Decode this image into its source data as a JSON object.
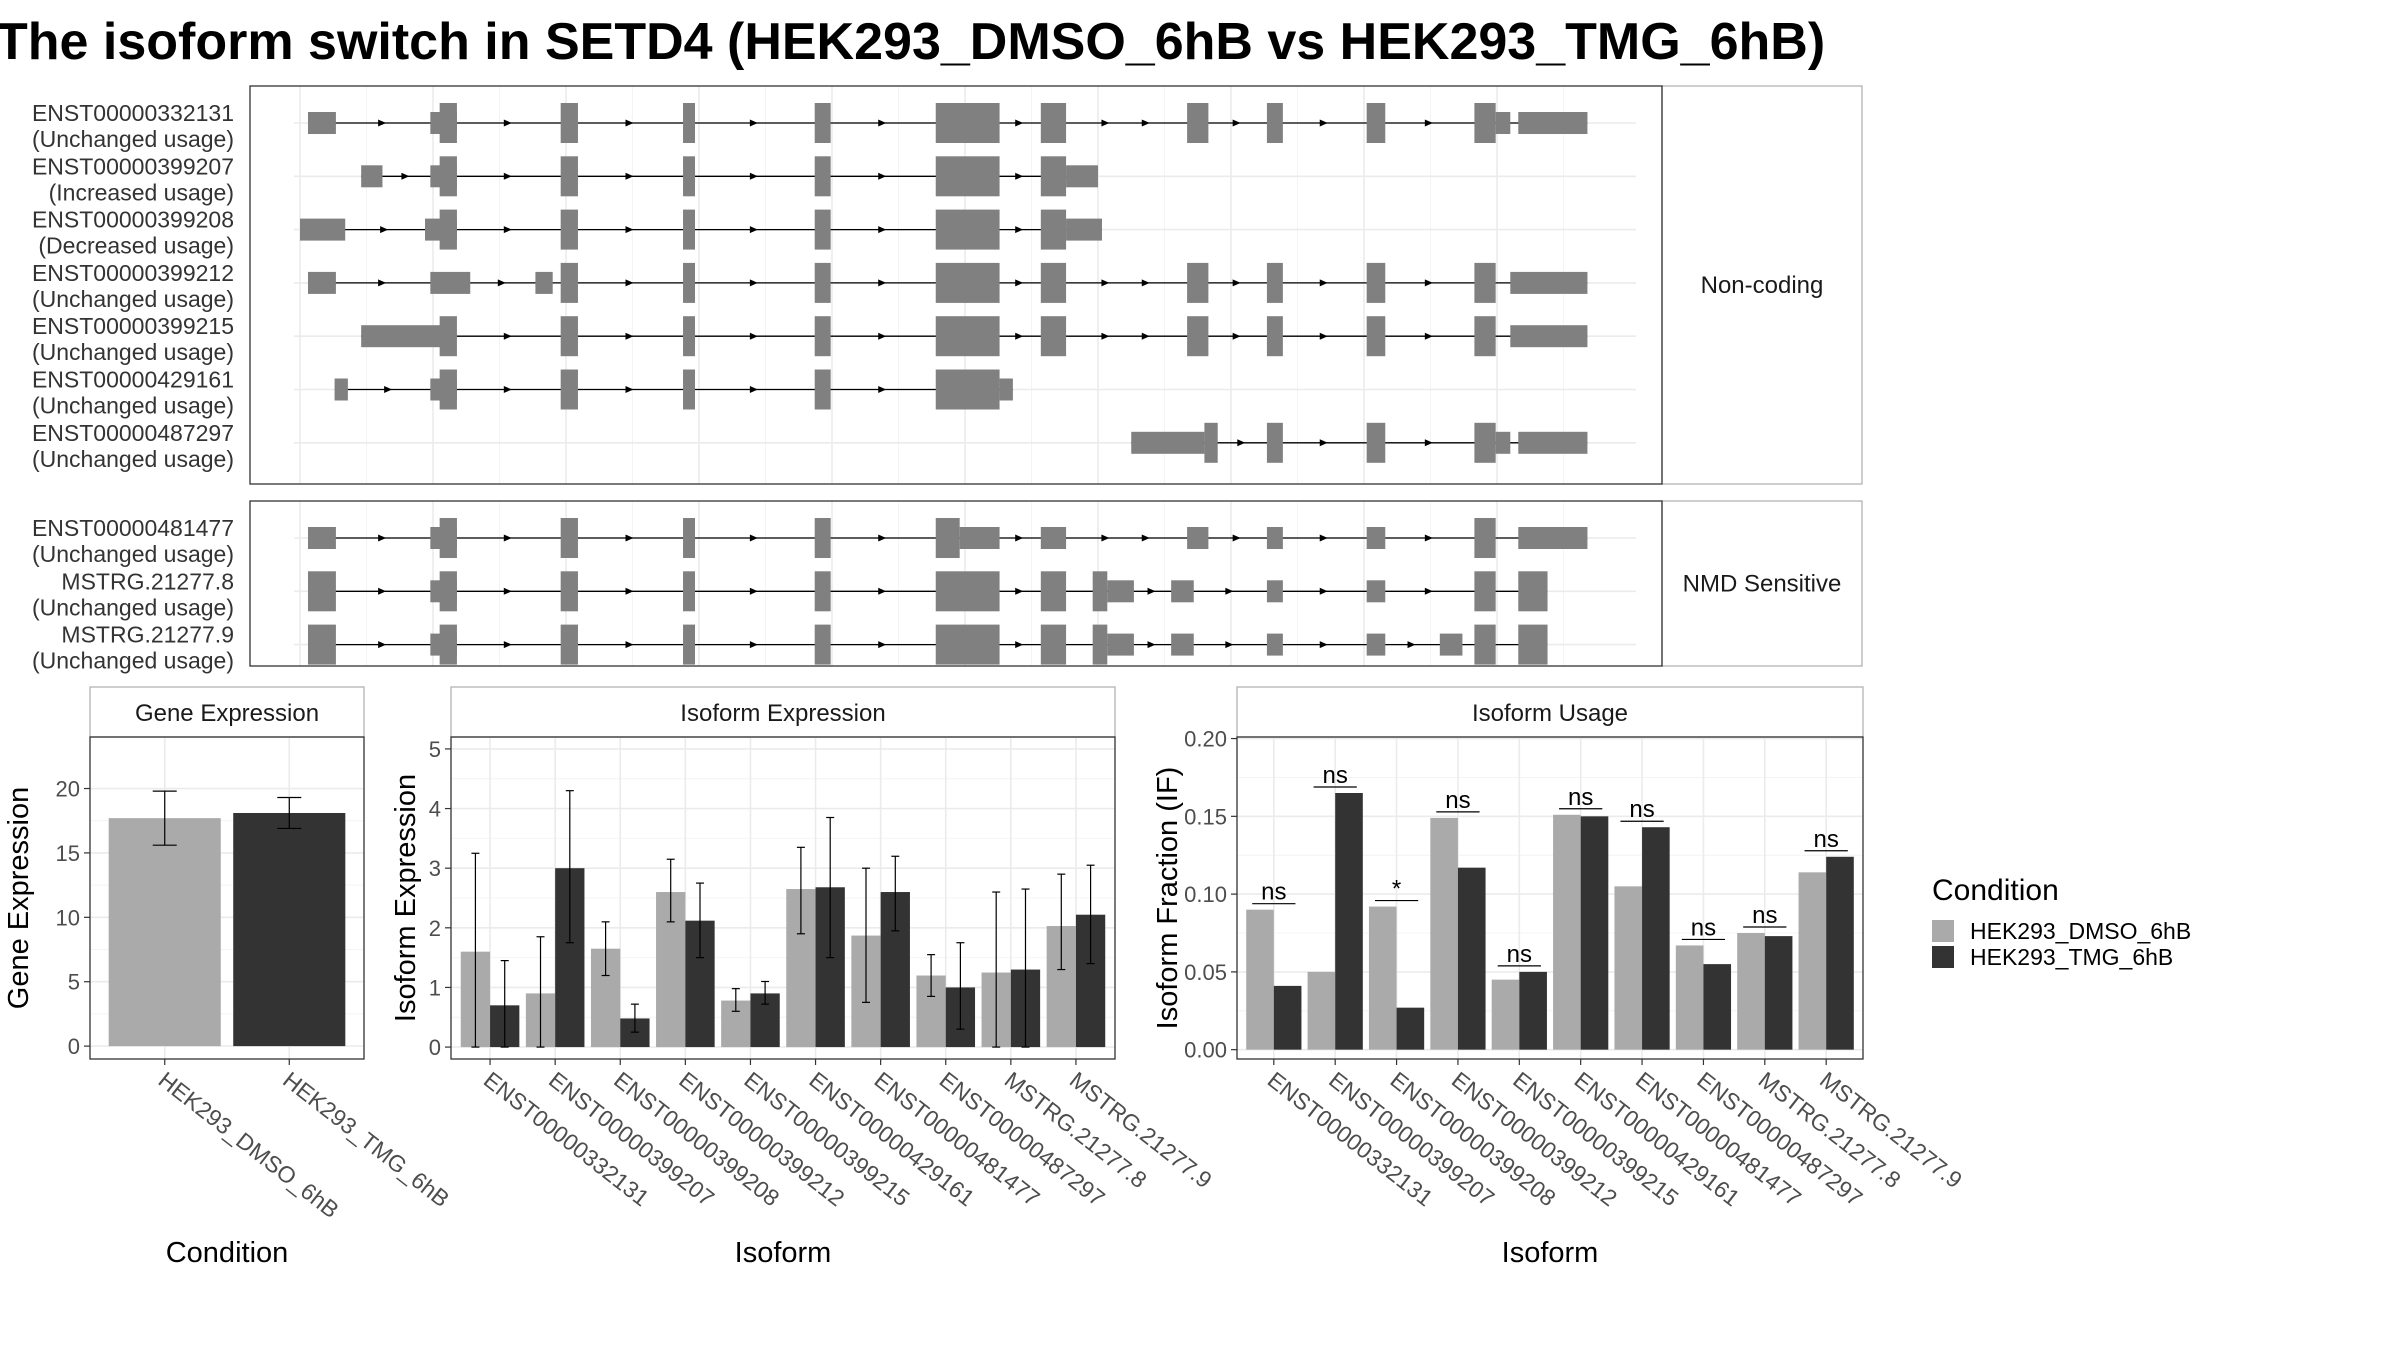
{
  "title": "The isoform switch in SETD4 (HEK293_DMSO_6hB vs HEK293_TMG_6hB)",
  "colors": {
    "dmso": "#aaaaaa",
    "tmg": "#333333",
    "exon": "#808080",
    "grid": "#ebebeb",
    "panel_border": "#333333",
    "strip_bg": "#ffffff"
  },
  "legend": {
    "title": "Condition",
    "items": [
      "HEK293_DMSO_6hB",
      "HEK293_TMG_6hB"
    ]
  },
  "chart_data": [
    {
      "type": "transcript_structure",
      "facets": [
        {
          "label": "Non-coding",
          "transcripts": [
            {
              "id": "ENST00000332131",
              "usage": "(Unchanged usage)"
            },
            {
              "id": "ENST00000399207",
              "usage": "(Increased usage)"
            },
            {
              "id": "ENST00000399208",
              "usage": "(Decreased usage)"
            },
            {
              "id": "ENST00000399212",
              "usage": "(Unchanged usage)"
            },
            {
              "id": "ENST00000399215",
              "usage": "(Unchanged usage)"
            },
            {
              "id": "ENST00000429161",
              "usage": "(Unchanged usage)"
            },
            {
              "id": "ENST00000487297",
              "usage": "(Unchanged usage)"
            }
          ]
        },
        {
          "label": "NMD Sensitive",
          "transcripts": [
            {
              "id": "ENST00000481477",
              "usage": "(Unchanged usage)"
            },
            {
              "id": "MSTRG.21277.8",
              "usage": "(Unchanged usage)"
            },
            {
              "id": "MSTRG.21277.9",
              "usage": "(Unchanged usage)"
            }
          ]
        }
      ]
    },
    {
      "type": "bar",
      "title": "Gene Expression",
      "xlabel": "Condition",
      "ylabel": "Gene Expression",
      "categories": [
        "HEK293_DMSO_6hB",
        "HEK293_TMG_6hB"
      ],
      "values": [
        17.7,
        18.1
      ],
      "err_low": [
        15.6,
        16.9
      ],
      "err_high": [
        19.8,
        19.3
      ],
      "ylim": [
        -1,
        24
      ],
      "yticks": [
        0,
        5,
        10,
        15,
        20
      ]
    },
    {
      "type": "bar",
      "title": "Isoform Expression",
      "xlabel": "Isoform",
      "ylabel": "Isoform Expression",
      "categories": [
        "ENST00000332131",
        "ENST00000399207",
        "ENST00000399208",
        "ENST00000399212",
        "ENST00000399215",
        "ENST00000429161",
        "ENST00000481477",
        "ENST00000487297",
        "MSTRG.21277.8",
        "MSTRG.21277.9"
      ],
      "series": [
        {
          "name": "HEK293_DMSO_6hB",
          "values": [
            1.6,
            0.9,
            1.65,
            2.6,
            0.78,
            2.65,
            1.87,
            1.2,
            1.25,
            2.03
          ],
          "err_low": [
            0.0,
            0.0,
            1.2,
            2.1,
            0.6,
            1.9,
            0.75,
            0.85,
            0.0,
            1.3
          ],
          "err_high": [
            3.25,
            1.85,
            2.1,
            3.15,
            0.98,
            3.35,
            3.0,
            1.55,
            2.6,
            2.9
          ]
        },
        {
          "name": "HEK293_TMG_6hB",
          "values": [
            0.7,
            3.0,
            0.48,
            2.12,
            0.9,
            2.68,
            2.6,
            1.0,
            1.3,
            2.22
          ],
          "err_low": [
            0.0,
            1.75,
            0.25,
            1.5,
            0.72,
            1.5,
            1.95,
            0.3,
            0.0,
            1.4
          ],
          "err_high": [
            1.45,
            4.3,
            0.72,
            2.75,
            1.1,
            3.85,
            3.2,
            1.75,
            2.65,
            3.05
          ]
        }
      ],
      "ylim": [
        -0.2,
        5.2
      ],
      "yticks": [
        0,
        1,
        2,
        3,
        4,
        5
      ]
    },
    {
      "type": "bar",
      "title": "Isoform Usage",
      "xlabel": "Isoform",
      "ylabel": "Isoform Fraction (IF)",
      "categories": [
        "ENST00000332131",
        "ENST00000399207",
        "ENST00000399208",
        "ENST00000399212",
        "ENST00000399215",
        "ENST00000429161",
        "ENST00000481477",
        "ENST00000487297",
        "MSTRG.21277.8",
        "MSTRG.21277.9"
      ],
      "series": [
        {
          "name": "HEK293_DMSO_6hB",
          "values": [
            0.09,
            0.05,
            0.092,
            0.149,
            0.045,
            0.151,
            0.105,
            0.067,
            0.075,
            0.114
          ]
        },
        {
          "name": "HEK293_TMG_6hB",
          "values": [
            0.041,
            0.165,
            0.027,
            0.117,
            0.05,
            0.15,
            0.143,
            0.055,
            0.073,
            0.124
          ]
        }
      ],
      "significance": [
        "ns",
        "ns",
        "*",
        "ns",
        "ns",
        "ns",
        "ns",
        "ns",
        "ns",
        "ns"
      ],
      "ylim": [
        -0.006,
        0.201
      ],
      "yticks": [
        0.0,
        0.05,
        0.1,
        0.15,
        0.2
      ],
      "ytick_labels": [
        "0.00",
        "0.05",
        "0.10",
        "0.15",
        "0.20"
      ]
    }
  ]
}
